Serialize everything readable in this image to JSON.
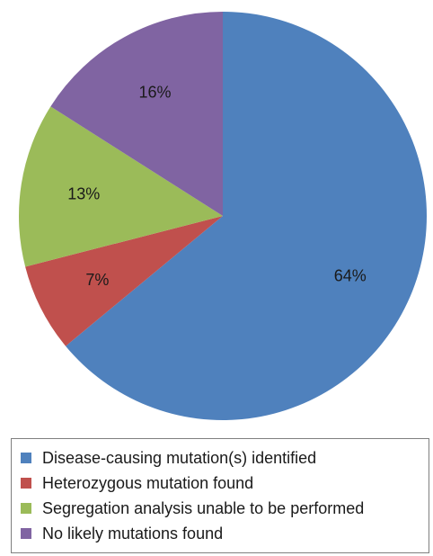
{
  "chart_data": {
    "type": "pie",
    "categories": [
      "Disease-causing mutation(s) identified",
      "Heterozygous mutation found",
      "Segregation analysis unable to be performed",
      "No likely mutations found"
    ],
    "values": [
      64,
      7,
      13,
      16
    ],
    "labels": [
      "64%",
      "7%",
      "13%",
      "16%"
    ],
    "colors": [
      "#4f81bd",
      "#c0504d",
      "#9bbb59",
      "#8064a2"
    ],
    "start": "12 o'clock",
    "direction": "clockwise",
    "legend_position": "bottom"
  }
}
